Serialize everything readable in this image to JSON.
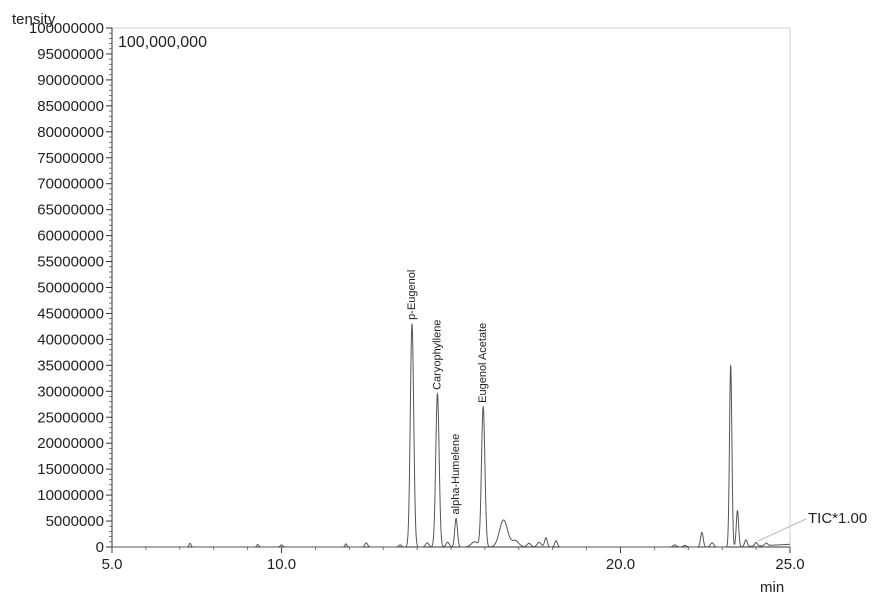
{
  "chart_data": {
    "type": "line",
    "ylabel": "tensity",
    "xlabel": "min",
    "scale_label": "100,000,000",
    "trace_label": "TIC*1.00",
    "xlim": [
      5.0,
      25.0
    ],
    "ylim": [
      0,
      100000000
    ],
    "x_ticks": [
      5.0,
      10.0,
      20.0,
      25.0
    ],
    "x_tick_labels": [
      "5.0",
      "10.0",
      "20.0",
      "25.0"
    ],
    "y_ticks": [
      0,
      5000000,
      10000000,
      15000000,
      20000000,
      25000000,
      30000000,
      35000000,
      40000000,
      45000000,
      50000000,
      55000000,
      60000000,
      65000000,
      70000000,
      75000000,
      80000000,
      85000000,
      90000000,
      95000000,
      100000000
    ],
    "y_tick_labels": [
      "0",
      "5000000",
      "10000000",
      "15000000",
      "20000000",
      "25000000",
      "30000000",
      "35000000",
      "40000000",
      "45000000",
      "50000000",
      "55000000",
      "60000000",
      "65000000",
      "70000000",
      "75000000",
      "80000000",
      "85000000",
      "90000000",
      "95000000",
      "100000000"
    ],
    "grid": false,
    "line_color": "#555555",
    "peaks": [
      {
        "x": 7.3,
        "y": 700000,
        "width": 0.03
      },
      {
        "x": 9.3,
        "y": 500000,
        "width": 0.03
      },
      {
        "x": 10.0,
        "y": 400000,
        "width": 0.04
      },
      {
        "x": 11.9,
        "y": 600000,
        "width": 0.03
      },
      {
        "x": 12.5,
        "y": 800000,
        "width": 0.04
      },
      {
        "x": 13.5,
        "y": 400000,
        "width": 0.04
      },
      {
        "x": 13.85,
        "y": 43000000,
        "width": 0.05,
        "label": "p-Eugenol"
      },
      {
        "x": 14.3,
        "y": 800000,
        "width": 0.05
      },
      {
        "x": 14.6,
        "y": 29500000,
        "width": 0.05,
        "label": "Caryophyllene"
      },
      {
        "x": 14.9,
        "y": 900000,
        "width": 0.05
      },
      {
        "x": 15.15,
        "y": 5500000,
        "width": 0.04,
        "label": "alpha-Humelene"
      },
      {
        "x": 15.7,
        "y": 1000000,
        "width": 0.1
      },
      {
        "x": 15.95,
        "y": 27000000,
        "width": 0.05,
        "label": "Eugenol Acetate"
      },
      {
        "x": 16.55,
        "y": 5200000,
        "width": 0.12
      },
      {
        "x": 16.9,
        "y": 1200000,
        "width": 0.1
      },
      {
        "x": 17.3,
        "y": 700000,
        "width": 0.06
      },
      {
        "x": 17.6,
        "y": 900000,
        "width": 0.06
      },
      {
        "x": 17.8,
        "y": 1800000,
        "width": 0.04
      },
      {
        "x": 18.1,
        "y": 1200000,
        "width": 0.04
      },
      {
        "x": 21.6,
        "y": 400000,
        "width": 0.05
      },
      {
        "x": 21.9,
        "y": 300000,
        "width": 0.05
      },
      {
        "x": 22.4,
        "y": 2800000,
        "width": 0.04
      },
      {
        "x": 22.7,
        "y": 800000,
        "width": 0.05
      },
      {
        "x": 23.25,
        "y": 35000000,
        "width": 0.035
      },
      {
        "x": 23.45,
        "y": 7000000,
        "width": 0.035
      },
      {
        "x": 23.7,
        "y": 1300000,
        "width": 0.04
      },
      {
        "x": 24.0,
        "y": 700000,
        "width": 0.04
      },
      {
        "x": 24.3,
        "y": 500000,
        "width": 0.04
      }
    ]
  }
}
